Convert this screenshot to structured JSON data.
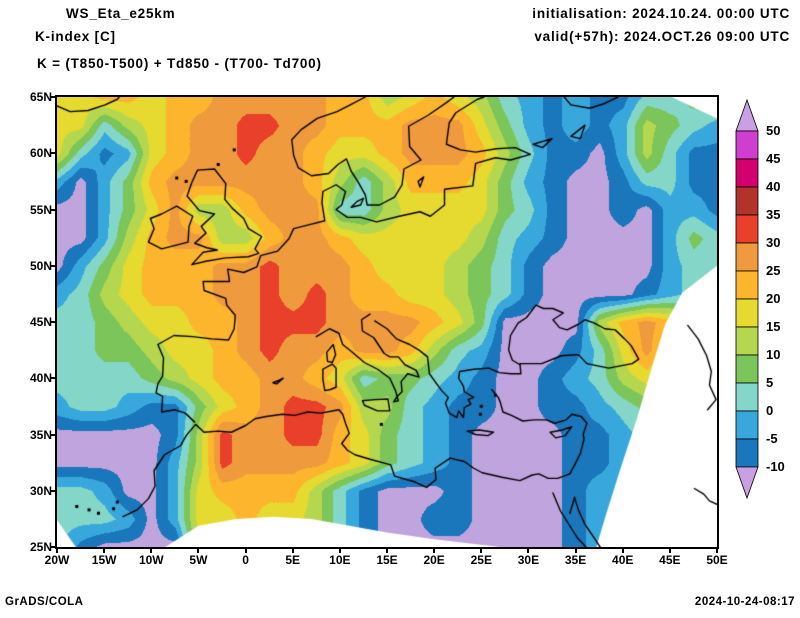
{
  "header": {
    "title": "WS_Eta_e25km",
    "subtitle": "K-index [C]",
    "formula": "K = (T850-T500) + Td850 - (T700- Td700)",
    "init_label": "initialisation: 2024.10.24. 00:00 UTC",
    "valid_label": "valid(+57h): 2024.OCT.26 09:00 UTC"
  },
  "footer": {
    "left": "GrADS/COLA",
    "right": "2024-10-24-08:17"
  },
  "axes": {
    "x_ticks": [
      "20W",
      "15W",
      "10W",
      "5W",
      "0",
      "5E",
      "10E",
      "15E",
      "20E",
      "25E",
      "30E",
      "35E",
      "40E",
      "45E",
      "50E"
    ],
    "y_ticks": [
      "65N",
      "60N",
      "55N",
      "50N",
      "45N",
      "40N",
      "35N",
      "30N",
      "25N"
    ]
  },
  "colorbar": {
    "labels": [
      "50",
      "45",
      "40",
      "35",
      "30",
      "25",
      "20",
      "15",
      "10",
      "5",
      "0",
      "-5",
      "-10"
    ],
    "segment_colors_top_to_bottom": [
      "#cf3ecf",
      "#d4006e",
      "#b23329",
      "#e8402a",
      "#f09a3e",
      "#fdb52d",
      "#e6d92f",
      "#b5d74f",
      "#7cc55a",
      "#83d6c8",
      "#38a8dc",
      "#1a77bb"
    ],
    "arrow_color": "#c9a0e4"
  },
  "chart_data": {
    "type": "heatmap",
    "title": "K-index [C]",
    "units": "C",
    "lon_range": [
      -20,
      50
    ],
    "lat_range": [
      25,
      65
    ],
    "lon_start": -20,
    "lon_step": 2.5,
    "lat_start": 65,
    "lat_step": -2.5,
    "levels": [
      -10,
      -5,
      0,
      5,
      10,
      15,
      20,
      25,
      30,
      35,
      40,
      45,
      50
    ],
    "level_colors": [
      "#c0a4dd",
      "#1a77bb",
      "#38a8dc",
      "#83d6c8",
      "#7cc55a",
      "#b5d74f",
      "#e6d92f",
      "#fdb52d",
      "#f09a3e",
      "#e8402a",
      "#b23329",
      "#d4006e",
      "#cf3ecf",
      "#c9a0e4"
    ],
    "values": [
      [
        17,
        17,
        22,
        22,
        17,
        22,
        22,
        27,
        27,
        27,
        27,
        27,
        22,
        22,
        12,
        17,
        22,
        17,
        12,
        2,
        -2,
        -7,
        -2,
        -7,
        -7,
        2,
        2,
        7,
        7
      ],
      [
        17,
        17,
        2,
        12,
        17,
        22,
        27,
        27,
        32,
        32,
        27,
        27,
        22,
        22,
        22,
        27,
        27,
        27,
        17,
        7,
        -2,
        -7,
        -2,
        -7,
        -2,
        12,
        7,
        2,
        -2
      ],
      [
        17,
        2,
        -7,
        -2,
        17,
        22,
        27,
        27,
        32,
        27,
        27,
        22,
        17,
        17,
        22,
        27,
        27,
        27,
        22,
        12,
        2,
        -7,
        -7,
        -12,
        -2,
        12,
        2,
        -7,
        -7
      ],
      [
        -2,
        -12,
        -2,
        7,
        22,
        27,
        27,
        27,
        27,
        27,
        27,
        22,
        12,
        2,
        12,
        22,
        22,
        22,
        17,
        7,
        -2,
        -7,
        -12,
        -12,
        -7,
        2,
        2,
        -7,
        -7
      ],
      [
        -12,
        -12,
        -2,
        7,
        17,
        27,
        12,
        12,
        22,
        27,
        27,
        27,
        2,
        2,
        12,
        17,
        17,
        17,
        17,
        7,
        2,
        -7,
        -12,
        -12,
        -7,
        -12,
        -2,
        -2,
        -7
      ],
      [
        -12,
        -12,
        -2,
        12,
        22,
        27,
        27,
        12,
        12,
        22,
        27,
        27,
        22,
        17,
        17,
        17,
        17,
        17,
        12,
        2,
        -2,
        -7,
        -12,
        -12,
        -12,
        -12,
        -2,
        7,
        2
      ],
      [
        -12,
        -2,
        7,
        17,
        22,
        22,
        22,
        27,
        27,
        32,
        27,
        27,
        27,
        22,
        17,
        17,
        17,
        12,
        7,
        2,
        -7,
        -12,
        -12,
        -12,
        -12,
        -12,
        -2,
        2,
        2
      ],
      [
        -2,
        2,
        12,
        17,
        22,
        22,
        22,
        27,
        27,
        32,
        27,
        32,
        27,
        22,
        22,
        17,
        17,
        12,
        7,
        2,
        -7,
        -12,
        -12,
        -12,
        -12,
        -7,
        -2,
        2,
        2
      ],
      [
        2,
        2,
        7,
        12,
        17,
        17,
        22,
        22,
        27,
        32,
        32,
        32,
        27,
        27,
        27,
        27,
        22,
        17,
        7,
        -12,
        -12,
        -12,
        -12,
        12,
        22,
        27,
        22,
        12,
        7
      ],
      [
        2,
        2,
        7,
        7,
        12,
        17,
        17,
        22,
        27,
        32,
        27,
        27,
        22,
        27,
        27,
        22,
        12,
        2,
        -2,
        -12,
        -12,
        -12,
        -7,
        2,
        17,
        27,
        17,
        7,
        2
      ],
      [
        2,
        2,
        2,
        2,
        7,
        12,
        17,
        22,
        22,
        27,
        27,
        22,
        17,
        2,
        7,
        7,
        2,
        -2,
        -7,
        -12,
        -12,
        -7,
        -2,
        2,
        12,
        17,
        12,
        7,
        2
      ],
      [
        -2,
        2,
        2,
        -2,
        -7,
        -7,
        7,
        17,
        22,
        27,
        32,
        32,
        27,
        12,
        12,
        2,
        -2,
        -7,
        -7,
        -12,
        -12,
        -7,
        -7,
        -2,
        2,
        7,
        2,
        2,
        2
      ],
      [
        -12,
        -12,
        -12,
        -12,
        -12,
        -7,
        12,
        32,
        27,
        27,
        32,
        32,
        22,
        17,
        7,
        2,
        -2,
        -7,
        -12,
        -12,
        -12,
        -12,
        -7,
        -7,
        -2,
        2,
        2,
        2,
        2
      ],
      [
        -12,
        -12,
        -12,
        -12,
        -12,
        -2,
        12,
        32,
        27,
        27,
        27,
        27,
        22,
        17,
        7,
        2,
        -2,
        -7,
        -12,
        -12,
        -12,
        -12,
        -7,
        -7,
        -2,
        -2,
        2,
        2,
        2
      ],
      [
        2,
        2,
        -2,
        -12,
        -12,
        -2,
        17,
        22,
        22,
        22,
        22,
        12,
        2,
        -7,
        -12,
        -12,
        -12,
        -7,
        -12,
        -12,
        -12,
        -12,
        -7,
        -2,
        -2,
        2,
        2,
        2,
        2
      ],
      [
        2,
        2,
        2,
        -2,
        -12,
        -2,
        17,
        17,
        22,
        17,
        17,
        12,
        2,
        -7,
        -12,
        -12,
        -7,
        -7,
        -12,
        -12,
        -12,
        -12,
        -7,
        -2,
        2,
        2,
        2,
        2,
        2
      ],
      [
        2,
        -7,
        -12,
        -12,
        -12,
        -12,
        17,
        17,
        22,
        17,
        17,
        12,
        2,
        -7,
        -12,
        -12,
        -12,
        -12,
        -12,
        -12,
        -12,
        -12,
        -7,
        -2,
        2,
        2,
        2,
        2,
        2
      ]
    ]
  }
}
